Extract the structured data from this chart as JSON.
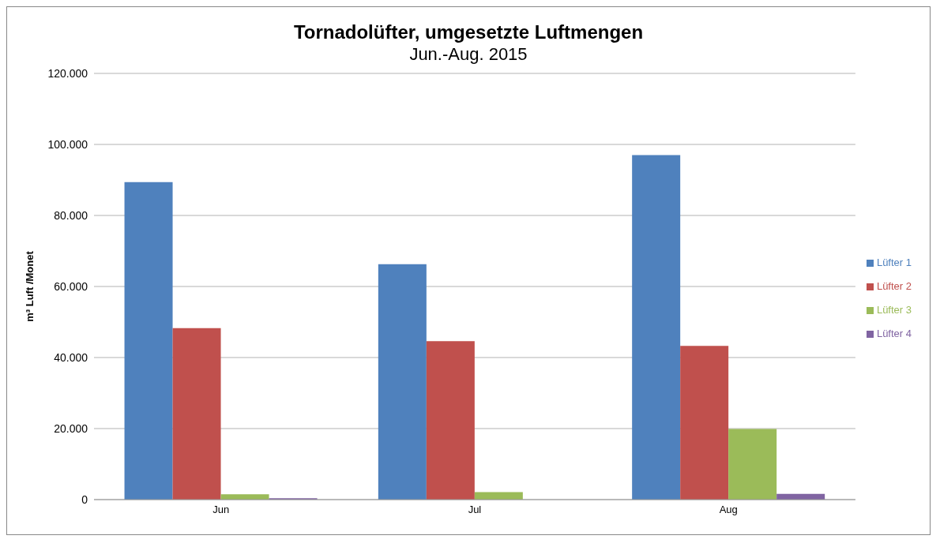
{
  "chart_data": {
    "type": "bar",
    "title": "Tornadolüfter, umgesetzte Luftmengen",
    "subtitle": "Jun.-Aug. 2015",
    "ylabel": "m³ Luft /Monet",
    "categories": [
      "Jun",
      "Jul",
      "Aug"
    ],
    "series": [
      {
        "name": "Lüfter 1",
        "color": "#4f81bd",
        "values": [
          89400,
          66300,
          97000
        ]
      },
      {
        "name": "Lüfter 2",
        "color": "#c0504d",
        "values": [
          48300,
          44600,
          43300
        ]
      },
      {
        "name": "Lüfter 3",
        "color": "#9bbb59",
        "values": [
          1500,
          2100,
          19900
        ]
      },
      {
        "name": "Lüfter 4",
        "color": "#8064a2",
        "values": [
          400,
          0,
          1600
        ]
      }
    ],
    "ylim": [
      0,
      120000
    ],
    "yticks": [
      0,
      {
        "value": 20000,
        "label": "20.000"
      },
      {
        "value": 40000,
        "label": "40.000"
      },
      {
        "value": 60000,
        "label": "60.000"
      },
      {
        "value": 80000,
        "label": "80.000"
      },
      {
        "value": 100000,
        "label": "100.000"
      },
      {
        "value": 120000,
        "label": "120.000"
      }
    ],
    "grid": "y",
    "legend": "right"
  }
}
